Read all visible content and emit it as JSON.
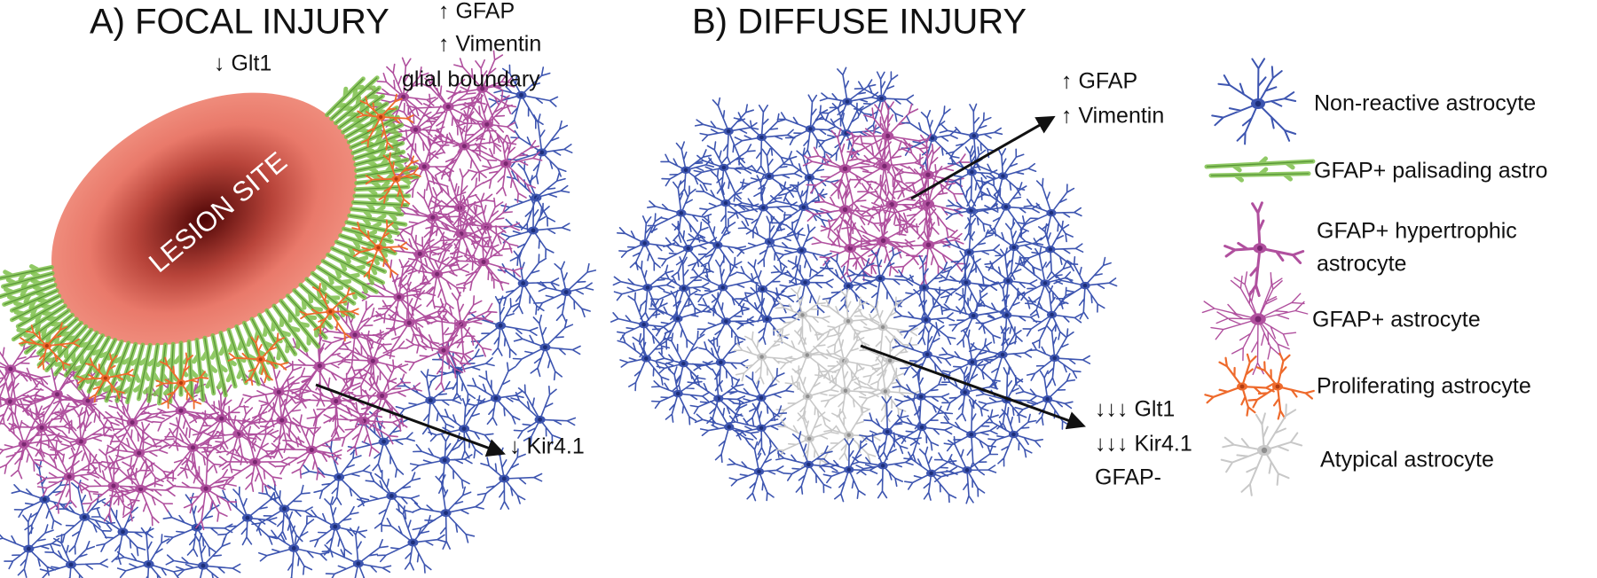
{
  "panel_a": {
    "title": "A) FOCAL INJURY",
    "upregulated": [
      "↑ GFAP",
      "↑ Vimentin"
    ],
    "boundary_label": "glial boundary",
    "glt1_label": "↓ Glt1",
    "lesion_label": "LESION SITE",
    "kir_label": "↓ Kir4.1"
  },
  "panel_b": {
    "title": "B) DIFFUSE INJURY",
    "upregulated": [
      "↑ GFAP",
      "↑ Vimentin"
    ],
    "downregulated": [
      "↓↓↓ Glt1",
      "↓↓↓ Kir4.1",
      "GFAP-"
    ]
  },
  "legend": {
    "items": [
      {
        "lines": [
          "Non-reactive astrocyte"
        ]
      },
      {
        "lines": [
          "GFAP+ palisading astro"
        ]
      },
      {
        "lines": [
          "GFAP+ hypertrophic",
          "astrocyte"
        ]
      },
      {
        "lines": [
          "GFAP+ astrocyte"
        ]
      },
      {
        "lines": [
          "Proliferating astrocyte"
        ]
      },
      {
        "lines": [
          "Atypical astrocyte"
        ]
      }
    ]
  }
}
